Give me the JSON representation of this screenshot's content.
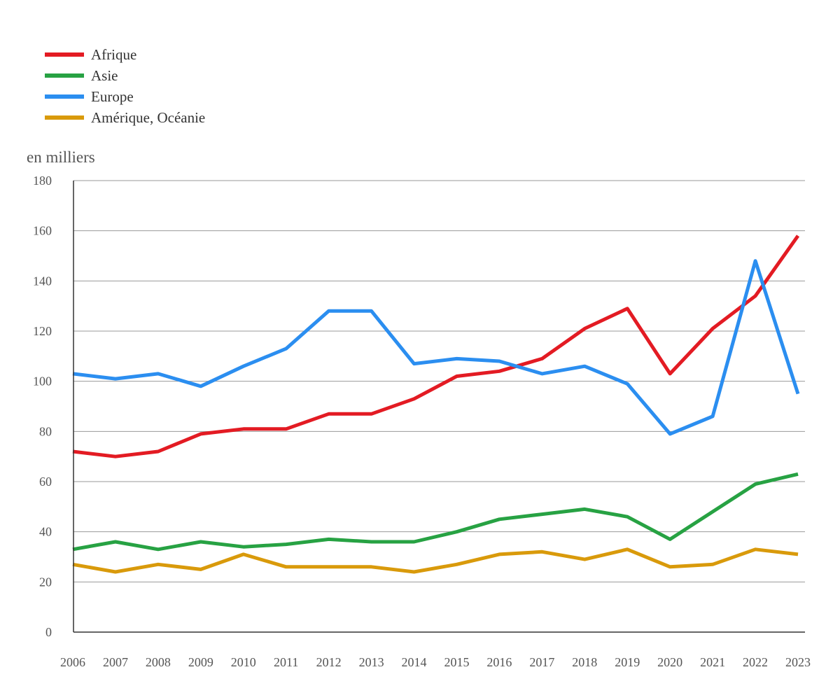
{
  "chart_data": {
    "type": "line",
    "unit_label": "en milliers",
    "categories": [
      "2006",
      "2007",
      "2008",
      "2009",
      "2010",
      "2011",
      "2012",
      "2013",
      "2014",
      "2015",
      "2016",
      "2017",
      "2018",
      "2019",
      "2020",
      "2021",
      "2022",
      "2023"
    ],
    "y_ticks": [
      0,
      20,
      40,
      60,
      80,
      100,
      120,
      140,
      160,
      180
    ],
    "ylim": [
      0,
      180
    ],
    "grid": true,
    "legend_position": "top-left",
    "series": [
      {
        "name": "Afrique",
        "color": "#e31b23",
        "values": [
          72,
          70,
          72,
          79,
          81,
          81,
          87,
          87,
          93,
          102,
          104,
          109,
          121,
          129,
          103,
          121,
          134,
          158
        ]
      },
      {
        "name": "Asie",
        "color": "#27a243",
        "values": [
          33,
          36,
          33,
          36,
          34,
          35,
          37,
          36,
          36,
          40,
          45,
          47,
          49,
          46,
          37,
          48,
          59,
          63
        ]
      },
      {
        "name": "Europe",
        "color": "#2b8ef0",
        "values": [
          103,
          101,
          103,
          98,
          106,
          113,
          128,
          128,
          107,
          109,
          108,
          103,
          106,
          99,
          79,
          86,
          148,
          95
        ]
      },
      {
        "name": "Amérique, Océanie",
        "color": "#d99a0b",
        "values": [
          27,
          24,
          27,
          25,
          31,
          26,
          26,
          26,
          24,
          27,
          31,
          32,
          29,
          33,
          26,
          27,
          33,
          31
        ]
      }
    ]
  }
}
